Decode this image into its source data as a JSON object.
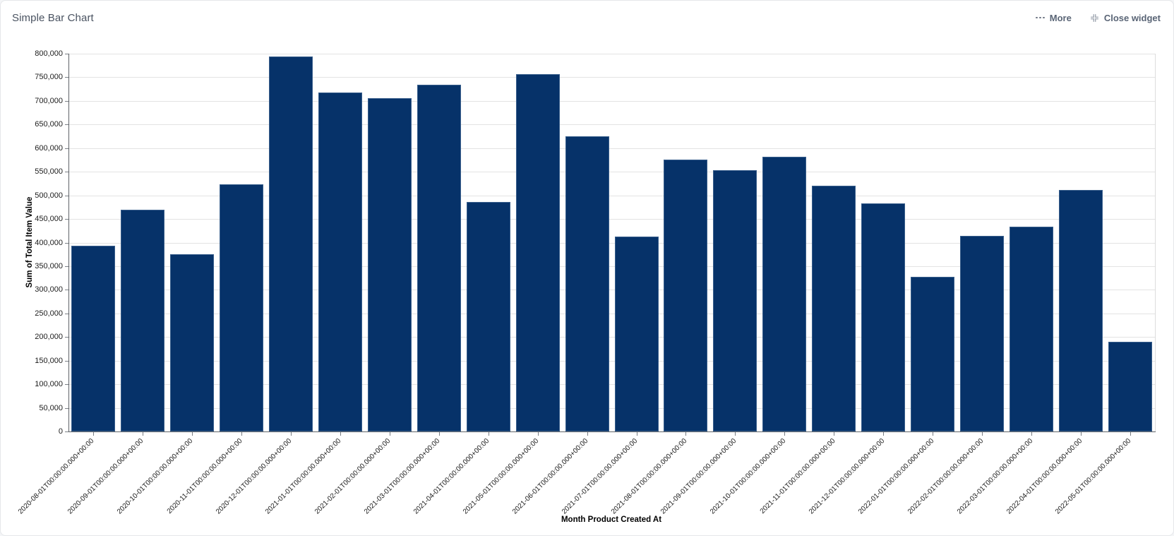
{
  "widget": {
    "title": "Simple Bar Chart",
    "actions": {
      "more_label": "More",
      "close_label": "Close widget"
    }
  },
  "colors": {
    "bar": "#063269",
    "grid": "#e3e3e3",
    "axis": "#5f6368",
    "header_text": "#4a5361",
    "action_text": "#5a6576"
  },
  "chart_data": {
    "type": "bar",
    "title": "Simple Bar Chart",
    "xlabel": "Month Product Created At",
    "ylabel": "Sum of Total Item Value",
    "ylim": [
      0,
      800000
    ],
    "ytick_step": 50000,
    "grid": true,
    "legend": false,
    "categories": [
      "2020-08-01T00:00:00.000+00:00",
      "2020-09-01T00:00:00.000+00:00",
      "2020-10-01T00:00:00.000+00:00",
      "2020-11-01T00:00:00.000+00:00",
      "2020-12-01T00:00:00.000+00:00",
      "2021-01-01T00:00:00.000+00:00",
      "2021-02-01T00:00:00.000+00:00",
      "2021-03-01T00:00:00.000+00:00",
      "2021-04-01T00:00:00.000+00:00",
      "2021-05-01T00:00:00.000+00:00",
      "2021-06-01T00:00:00.000+00:00",
      "2021-07-01T00:00:00.000+00:00",
      "2021-08-01T00:00:00.000+00:00",
      "2021-09-01T00:00:00.000+00:00",
      "2021-10-01T00:00:00.000+00:00",
      "2021-11-01T00:00:00.000+00:00",
      "2021-12-01T00:00:00.000+00:00",
      "2022-01-01T00:00:00.000+00:00",
      "2022-02-01T00:00:00.000+00:00",
      "2022-03-01T00:00:00.000+00:00",
      "2022-04-01T00:00:00.000+00:00",
      "2022-05-01T00:00:00.000+00:00"
    ],
    "values": [
      393000,
      470000,
      375000,
      524000,
      794000,
      718000,
      706000,
      734000,
      486000,
      756000,
      625000,
      413000,
      575000,
      554000,
      581000,
      521000,
      483000,
      328000,
      414000,
      434000,
      511000,
      190000
    ],
    "ytick_labels": [
      "0",
      "50,000",
      "100,000",
      "150,000",
      "200,000",
      "250,000",
      "300,000",
      "350,000",
      "400,000",
      "450,000",
      "500,000",
      "550,000",
      "600,000",
      "650,000",
      "700,000",
      "750,000",
      "800,000"
    ]
  }
}
